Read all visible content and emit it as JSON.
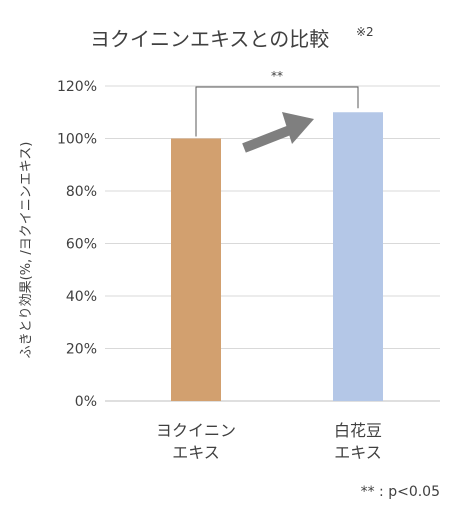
{
  "chart_data": {
    "type": "bar",
    "title": "ヨクイニンエキスとの比較",
    "title_superscript": "※2",
    "ylabel": "ふきとり効果(%, /ヨクイニンエキス)",
    "xlabel": "",
    "categories": [
      [
        "ヨクイニン",
        "エキス"
      ],
      [
        "白花豆",
        "エキス"
      ]
    ],
    "values": [
      100,
      110
    ],
    "bar_colors": [
      "#d2a06f",
      "#b4c7e7"
    ],
    "ylim": [
      0,
      120
    ],
    "yticks": [
      0,
      20,
      40,
      60,
      80,
      100,
      120
    ],
    "ytick_labels": [
      "0%",
      "20%",
      "40%",
      "60%",
      "80%",
      "100%",
      "120%"
    ],
    "grid": true,
    "significance": {
      "label": "**",
      "between": [
        0,
        1
      ]
    },
    "arrow": {
      "from_category": 0,
      "to_category": 1,
      "color": "#7f7f7f"
    },
    "footnote": "** : p<0.05"
  }
}
